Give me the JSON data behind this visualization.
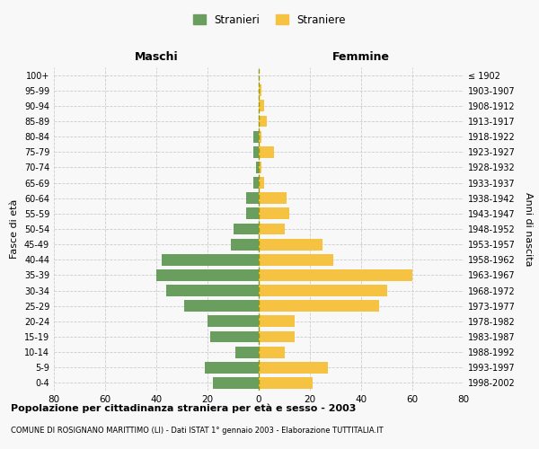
{
  "age_groups": [
    "0-4",
    "5-9",
    "10-14",
    "15-19",
    "20-24",
    "25-29",
    "30-34",
    "35-39",
    "40-44",
    "45-49",
    "50-54",
    "55-59",
    "60-64",
    "65-69",
    "70-74",
    "75-79",
    "80-84",
    "85-89",
    "90-94",
    "95-99",
    "100+"
  ],
  "birth_years": [
    "1998-2002",
    "1993-1997",
    "1988-1992",
    "1983-1987",
    "1978-1982",
    "1973-1977",
    "1968-1972",
    "1963-1967",
    "1958-1962",
    "1953-1957",
    "1948-1952",
    "1943-1947",
    "1938-1942",
    "1933-1937",
    "1928-1932",
    "1923-1927",
    "1918-1922",
    "1913-1917",
    "1908-1912",
    "1903-1907",
    "≤ 1902"
  ],
  "males": [
    18,
    21,
    9,
    19,
    20,
    29,
    36,
    40,
    38,
    11,
    10,
    5,
    5,
    2,
    1,
    2,
    2,
    0,
    0,
    0,
    0
  ],
  "females": [
    21,
    27,
    10,
    14,
    14,
    47,
    50,
    60,
    29,
    25,
    10,
    12,
    11,
    2,
    1,
    6,
    1,
    3,
    2,
    1,
    0
  ],
  "male_color": "#6a9e5e",
  "female_color": "#f5c242",
  "background_color": "#f8f8f8",
  "grid_color": "#cccccc",
  "dashed_line_color": "#999900",
  "title": "Popolazione per cittadinanza straniera per età e sesso - 2003",
  "subtitle": "COMUNE DI ROSIGNANO MARITTIMO (LI) - Dati ISTAT 1° gennaio 2003 - Elaborazione TUTTITALIA.IT",
  "ylabel_left": "Fasce di età",
  "ylabel_right": "Anni di nascita",
  "header_left": "Maschi",
  "header_right": "Femmine",
  "legend_male": "Stranieri",
  "legend_female": "Straniere",
  "xlim": 80
}
